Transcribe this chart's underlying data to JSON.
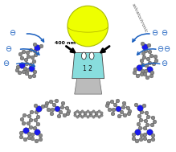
{
  "bg_color": "#ffffff",
  "bulb_sphere_color": "#eeff00",
  "flask_color": "#88dddd",
  "flask_label": "1 2",
  "arrow_400nm_text": "400 nm",
  "solvatochromic_text": "solvatochronic",
  "arrow_color": "#1a5fbf",
  "molecule_color_N": "#1a1aee",
  "molecule_color_C": "#888888",
  "molecule_color_H": "#cccccc",
  "neg_symbol_color": "#1a5fbf",
  "background": "#ffffff"
}
